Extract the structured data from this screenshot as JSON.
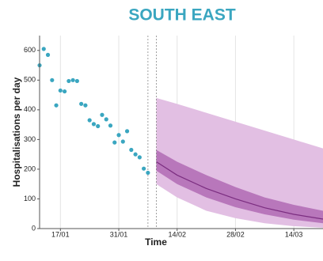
{
  "chart_data": {
    "type": "line",
    "title": "SOUTH EAST",
    "title_color": "#3aa6c0",
    "xlabel": "Time",
    "ylabel": "Hospitalisations per day",
    "xlim": [
      "12/01",
      "21/03"
    ],
    "xticks": [
      "17/01",
      "31/01",
      "14/02",
      "28/02",
      "14/03"
    ],
    "ylim": [
      0,
      650
    ],
    "yticks": [
      0,
      100,
      200,
      300,
      400,
      500,
      600
    ],
    "grid_x": true,
    "vlines": [
      "07/02",
      "09/02"
    ],
    "observed": {
      "color": "#3aa6c0",
      "x": [
        "12/01",
        "13/01",
        "14/01",
        "15/01",
        "16/01",
        "17/01",
        "18/01",
        "19/01",
        "20/01",
        "21/01",
        "22/01",
        "23/01",
        "24/01",
        "25/01",
        "26/01",
        "27/01",
        "28/01",
        "29/01",
        "30/01",
        "31/01",
        "01/02",
        "02/02",
        "03/02",
        "04/02",
        "05/02",
        "06/02",
        "07/02"
      ],
      "values": [
        550,
        605,
        585,
        500,
        415,
        465,
        462,
        497,
        500,
        497,
        420,
        415,
        365,
        352,
        345,
        383,
        368,
        347,
        290,
        315,
        293,
        328,
        265,
        250,
        240,
        202,
        188
      ]
    },
    "projection": {
      "x": [
        "09/02",
        "14/02",
        "21/02",
        "28/02",
        "07/03",
        "14/03",
        "21/03"
      ],
      "median": [
        225,
        180,
        135,
        100,
        70,
        48,
        32
      ],
      "median_color": "#7b2d80",
      "bands": [
        {
          "color": "#e2bfe3",
          "lower": [
            150,
            105,
            60,
            35,
            18,
            8,
            3
          ],
          "upper": [
            440,
            420,
            390,
            360,
            330,
            300,
            270
          ]
        },
        {
          "color": "#b877bb",
          "lower": [
            195,
            150,
            105,
            72,
            48,
            30,
            18
          ],
          "upper": [
            265,
            225,
            180,
            140,
            105,
            80,
            60
          ]
        }
      ]
    }
  }
}
